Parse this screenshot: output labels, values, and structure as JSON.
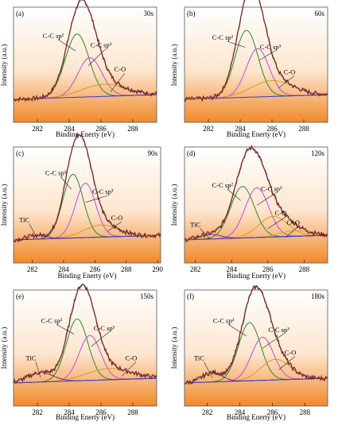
{
  "figure": {
    "xlabel": "Binding Enerty (eV)",
    "ylabel": "Intensity (a.u.)"
  },
  "colors": {
    "bg_top": "#ffffff",
    "bg_bottom": "#f08a2a",
    "raw": "#6b1f1f",
    "envelope": "#b77a7a",
    "sp2": "#2a8a2a",
    "sp3": "#c24bd8",
    "co": "#d89a20",
    "co2": "#c4b040",
    "tic": "#7a2a7a",
    "baseline": "#3a3acc"
  },
  "chart_data": [
    {
      "type": "line",
      "id": "a",
      "letter": "(a)",
      "time": "30s",
      "xlim": [
        280.5,
        289.5
      ],
      "xticks": [
        "282",
        "284",
        "286",
        "288"
      ],
      "components": [
        {
          "name": "C-C sp2",
          "label": "C-C sp²",
          "center": 284.5,
          "height": 0.68,
          "width": 0.75,
          "color": "#2a8a2a"
        },
        {
          "name": "C-C sp3",
          "label": "C-C sp³",
          "center": 285.3,
          "height": 0.42,
          "width": 0.75,
          "color": "#c24bd8"
        },
        {
          "name": "C-O",
          "label": "C-O",
          "center": 286.2,
          "height": 0.13,
          "width": 1.4,
          "color": "#d89a20"
        }
      ],
      "labels": [
        {
          "text": "C-C sp²",
          "x": 283.0,
          "y": 0.72,
          "tx": 284.4,
          "ty": 0.58
        },
        {
          "text": "C-C sp³",
          "x": 286.0,
          "y": 0.62,
          "tx": 285.2,
          "ty": 0.42
        },
        {
          "text": "C-O",
          "x": 287.2,
          "y": 0.36,
          "tx": 286.6,
          "ty": 0.14
        }
      ]
    },
    {
      "type": "line",
      "id": "b",
      "letter": "(b)",
      "time": "60s",
      "xlim": [
        280.5,
        289.5
      ],
      "xticks": [
        "282",
        "284",
        "286",
        "288"
      ],
      "components": [
        {
          "name": "C-C sp2",
          "label": "C-C sp²",
          "center": 284.4,
          "height": 0.72,
          "width": 0.72,
          "color": "#2a8a2a"
        },
        {
          "name": "C-C sp3",
          "label": "C-C sp³",
          "center": 285.1,
          "height": 0.52,
          "width": 0.72,
          "color": "#c24bd8"
        },
        {
          "name": "C-O",
          "label": "C-O",
          "center": 286.0,
          "height": 0.17,
          "width": 1.3,
          "color": "#d89a20"
        }
      ],
      "labels": [
        {
          "text": "C-C sp²",
          "x": 282.9,
          "y": 0.7,
          "tx": 284.3,
          "ty": 0.62
        },
        {
          "text": "C-C sp³",
          "x": 285.9,
          "y": 0.6,
          "tx": 285.2,
          "ty": 0.48
        },
        {
          "text": "C-O",
          "x": 287.1,
          "y": 0.33,
          "tx": 286.4,
          "ty": 0.18
        }
      ]
    },
    {
      "type": "line",
      "id": "c",
      "letter": "(c)",
      "time": "90s",
      "xlim": [
        280.8,
        290.2
      ],
      "xticks": [
        "282",
        "284",
        "286",
        "288",
        "290"
      ],
      "components": [
        {
          "name": "C-C sp2",
          "label": "C-C sp²",
          "center": 284.6,
          "height": 0.68,
          "width": 0.65,
          "color": "#2a8a2a"
        },
        {
          "name": "C-C sp3",
          "label": "C-C sp³",
          "center": 285.4,
          "height": 0.58,
          "width": 0.65,
          "color": "#c24bd8"
        },
        {
          "name": "C-O",
          "label": "C-O",
          "center": 286.4,
          "height": 0.13,
          "width": 1.1,
          "color": "#d89a20"
        },
        {
          "name": "TiC",
          "label": "TiC",
          "center": 282.3,
          "height": 0.04,
          "width": 0.6,
          "color": "#7a2a7a"
        }
      ],
      "labels": [
        {
          "text": "C-C sp²",
          "x": 283.5,
          "y": 0.75,
          "tx": 284.5,
          "ty": 0.6
        },
        {
          "text": "C-C sp³",
          "x": 286.5,
          "y": 0.55,
          "tx": 285.4,
          "ty": 0.46
        },
        {
          "text": "C-O",
          "x": 287.4,
          "y": 0.27,
          "tx": 286.8,
          "ty": 0.15
        },
        {
          "text": "TiC",
          "x": 281.5,
          "y": 0.25,
          "tx": 282.3,
          "ty": 0.08
        }
      ]
    },
    {
      "type": "line",
      "id": "d",
      "letter": "(d)",
      "time": "120s",
      "xlim": [
        281.4,
        289.3
      ],
      "xticks": [
        "282",
        "284",
        "286",
        "288"
      ],
      "components": [
        {
          "name": "C-C sp2",
          "label": "C-C sp²",
          "center": 284.6,
          "height": 0.55,
          "width": 0.65,
          "color": "#2a8a2a"
        },
        {
          "name": "C-C sp3",
          "label": "C-C sp³",
          "center": 285.4,
          "height": 0.53,
          "width": 0.65,
          "color": "#c24bd8"
        },
        {
          "name": "C-O",
          "label": "C-O",
          "center": 286.3,
          "height": 0.22,
          "width": 0.8,
          "color": "#d89a20"
        },
        {
          "name": "C=O",
          "label": "C=O",
          "center": 287.5,
          "height": 0.06,
          "width": 0.8,
          "color": "#c4b040"
        },
        {
          "name": "TiC",
          "label": "TiC",
          "center": 282.8,
          "height": 0.05,
          "width": 0.6,
          "color": "#7a2a7a"
        }
      ],
      "labels": [
        {
          "text": "C-C sp²",
          "x": 283.5,
          "y": 0.62,
          "tx": 284.5,
          "ty": 0.48
        },
        {
          "text": "C-C sp³",
          "x": 286.2,
          "y": 0.58,
          "tx": 285.4,
          "ty": 0.43
        },
        {
          "text": "C-O",
          "x": 286.7,
          "y": 0.32,
          "tx": 286.0,
          "ty": 0.18
        },
        {
          "text": "C=O",
          "x": 287.4,
          "y": 0.22,
          "tx": 287.0,
          "ty": 0.09
        },
        {
          "text": "TiC",
          "x": 282.0,
          "y": 0.2,
          "tx": 282.8,
          "ty": 0.07
        }
      ]
    },
    {
      "type": "line",
      "id": "e",
      "letter": "(e)",
      "time": "150s",
      "xlim": [
        280.5,
        289.5
      ],
      "xticks": [
        "282",
        "284",
        "286",
        "288"
      ],
      "components": [
        {
          "name": "C-C sp2",
          "label": "C-C sp²",
          "center": 284.5,
          "height": 0.66,
          "width": 0.68,
          "color": "#2a8a2a"
        },
        {
          "name": "C-C sp3",
          "label": "C-C sp³",
          "center": 285.3,
          "height": 0.48,
          "width": 0.68,
          "color": "#c24bd8"
        },
        {
          "name": "C-O",
          "label": "C-O",
          "center": 286.5,
          "height": 0.12,
          "width": 1.4,
          "color": "#d89a20"
        },
        {
          "name": "TiC",
          "label": "TiC",
          "center": 282.2,
          "height": 0.1,
          "width": 0.8,
          "color": "#7a2a7a"
        }
      ],
      "labels": [
        {
          "text": "C-C sp²",
          "x": 282.9,
          "y": 0.7,
          "tx": 284.3,
          "ty": 0.58
        },
        {
          "text": "C-C sp³",
          "x": 286.2,
          "y": 0.62,
          "tx": 285.4,
          "ty": 0.45
        },
        {
          "text": "C-O",
          "x": 287.9,
          "y": 0.3,
          "tx": 287.3,
          "ty": 0.13
        },
        {
          "text": "TiC",
          "x": 281.6,
          "y": 0.3,
          "tx": 282.2,
          "ty": 0.12
        }
      ]
    },
    {
      "type": "line",
      "id": "f",
      "letter": "(f)",
      "time": "180s",
      "xlim": [
        280.6,
        289.4
      ],
      "xticks": [
        "282",
        "284",
        "286",
        "288"
      ],
      "components": [
        {
          "name": "C-C sp2",
          "label": "C-C sp²",
          "center": 284.6,
          "height": 0.62,
          "width": 0.68,
          "color": "#2a8a2a"
        },
        {
          "name": "C-C sp3",
          "label": "C-C sp³",
          "center": 285.4,
          "height": 0.46,
          "width": 0.68,
          "color": "#c24bd8"
        },
        {
          "name": "C-O",
          "label": "C-O",
          "center": 286.2,
          "height": 0.22,
          "width": 0.9,
          "color": "#d89a20"
        },
        {
          "name": "TiC",
          "label": "TiC",
          "center": 282.3,
          "height": 0.1,
          "width": 0.6,
          "color": "#7a2a7a"
        }
      ],
      "labels": [
        {
          "text": "C-C sp²",
          "x": 283.0,
          "y": 0.7,
          "tx": 284.4,
          "ty": 0.56
        },
        {
          "text": "C-C sp³",
          "x": 286.4,
          "y": 0.6,
          "tx": 285.4,
          "ty": 0.43
        },
        {
          "text": "C-O",
          "x": 287.1,
          "y": 0.36,
          "tx": 286.4,
          "ty": 0.2
        },
        {
          "text": "TiC",
          "x": 281.5,
          "y": 0.3,
          "tx": 282.3,
          "ty": 0.12
        }
      ]
    }
  ]
}
